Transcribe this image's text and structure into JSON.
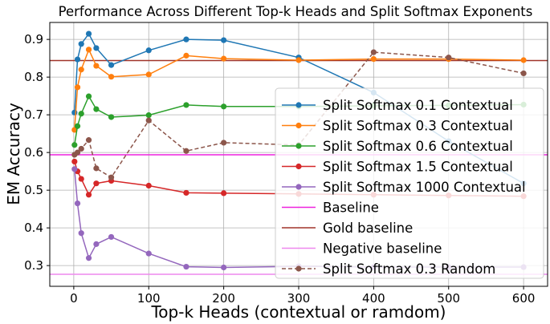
{
  "chart_data": {
    "type": "line",
    "title": "Performance Across Different Top-k Heads and Split Softmax Exponents",
    "xlabel": "Top-k Heads (contextual or ramdom)",
    "ylabel": "EM Accuracy",
    "xlim": [
      -32,
      632
    ],
    "ylim": [
      0.245,
      0.945
    ],
    "xticks": [
      0,
      100,
      200,
      300,
      400,
      500,
      600
    ],
    "yticks": [
      0.3,
      0.4,
      0.5,
      0.6,
      0.7,
      0.8,
      0.9
    ],
    "grid": true,
    "legend_position": "right",
    "series": [
      {
        "name": "Split Softmax 0.1 Contextual",
        "color": "#1f77b4",
        "dashed": false,
        "x": [
          1,
          5,
          10,
          20,
          30,
          50,
          100,
          150,
          200,
          300,
          400,
          500,
          600
        ],
        "y": [
          0.706,
          0.847,
          0.888,
          0.915,
          0.877,
          0.832,
          0.871,
          0.9,
          0.898,
          0.852,
          0.759,
          0.63,
          0.518
        ]
      },
      {
        "name": "Split Softmax 0.3 Contextual",
        "color": "#ff7f0e",
        "dashed": false,
        "x": [
          1,
          5,
          10,
          20,
          30,
          50,
          100,
          150,
          200,
          300,
          400,
          500,
          600
        ],
        "y": [
          0.66,
          0.773,
          0.82,
          0.873,
          0.83,
          0.801,
          0.807,
          0.857,
          0.849,
          0.845,
          0.848,
          0.848,
          0.845
        ]
      },
      {
        "name": "Split Softmax 0.6 Contextual",
        "color": "#2ca02c",
        "dashed": false,
        "x": [
          1,
          5,
          10,
          20,
          30,
          50,
          100,
          150,
          200,
          300,
          400,
          500,
          600
        ],
        "y": [
          0.62,
          0.67,
          0.703,
          0.749,
          0.715,
          0.694,
          0.699,
          0.726,
          0.722,
          0.722,
          0.724,
          0.725,
          0.727
        ]
      },
      {
        "name": "Split Softmax 1.5 Contextual",
        "color": "#d62728",
        "dashed": false,
        "x": [
          1,
          5,
          10,
          20,
          30,
          50,
          100,
          150,
          200,
          300,
          400,
          500,
          600
        ],
        "y": [
          0.576,
          0.55,
          0.53,
          0.488,
          0.518,
          0.525,
          0.512,
          0.493,
          0.492,
          0.49,
          0.488,
          0.486,
          0.484
        ]
      },
      {
        "name": "Split Softmax 1000 Contextual",
        "color": "#9467bd",
        "dashed": false,
        "x": [
          1,
          5,
          10,
          20,
          30,
          50,
          100,
          150,
          200,
          300,
          400,
          500,
          600
        ],
        "y": [
          0.556,
          0.465,
          0.386,
          0.32,
          0.357,
          0.376,
          0.332,
          0.297,
          0.295,
          0.298,
          0.296,
          0.296,
          0.296
        ]
      },
      {
        "name": "Split Softmax 0.3 Random",
        "color": "#8c564b",
        "dashed": true,
        "x": [
          1,
          5,
          10,
          20,
          30,
          50,
          100,
          150,
          200,
          300,
          400,
          500,
          600
        ],
        "y": [
          0.594,
          0.6,
          0.61,
          0.633,
          0.558,
          0.534,
          0.685,
          0.604,
          0.626,
          0.62,
          0.866,
          0.852,
          0.81
        ]
      }
    ],
    "reference_lines": [
      {
        "name": "Baseline",
        "color": "#ee22dd",
        "y": 0.594
      },
      {
        "name": "Gold baseline",
        "color": "#a0342a",
        "y": 0.844
      },
      {
        "name": "Negative baseline",
        "color": "#ee88ee",
        "y": 0.277
      }
    ]
  }
}
